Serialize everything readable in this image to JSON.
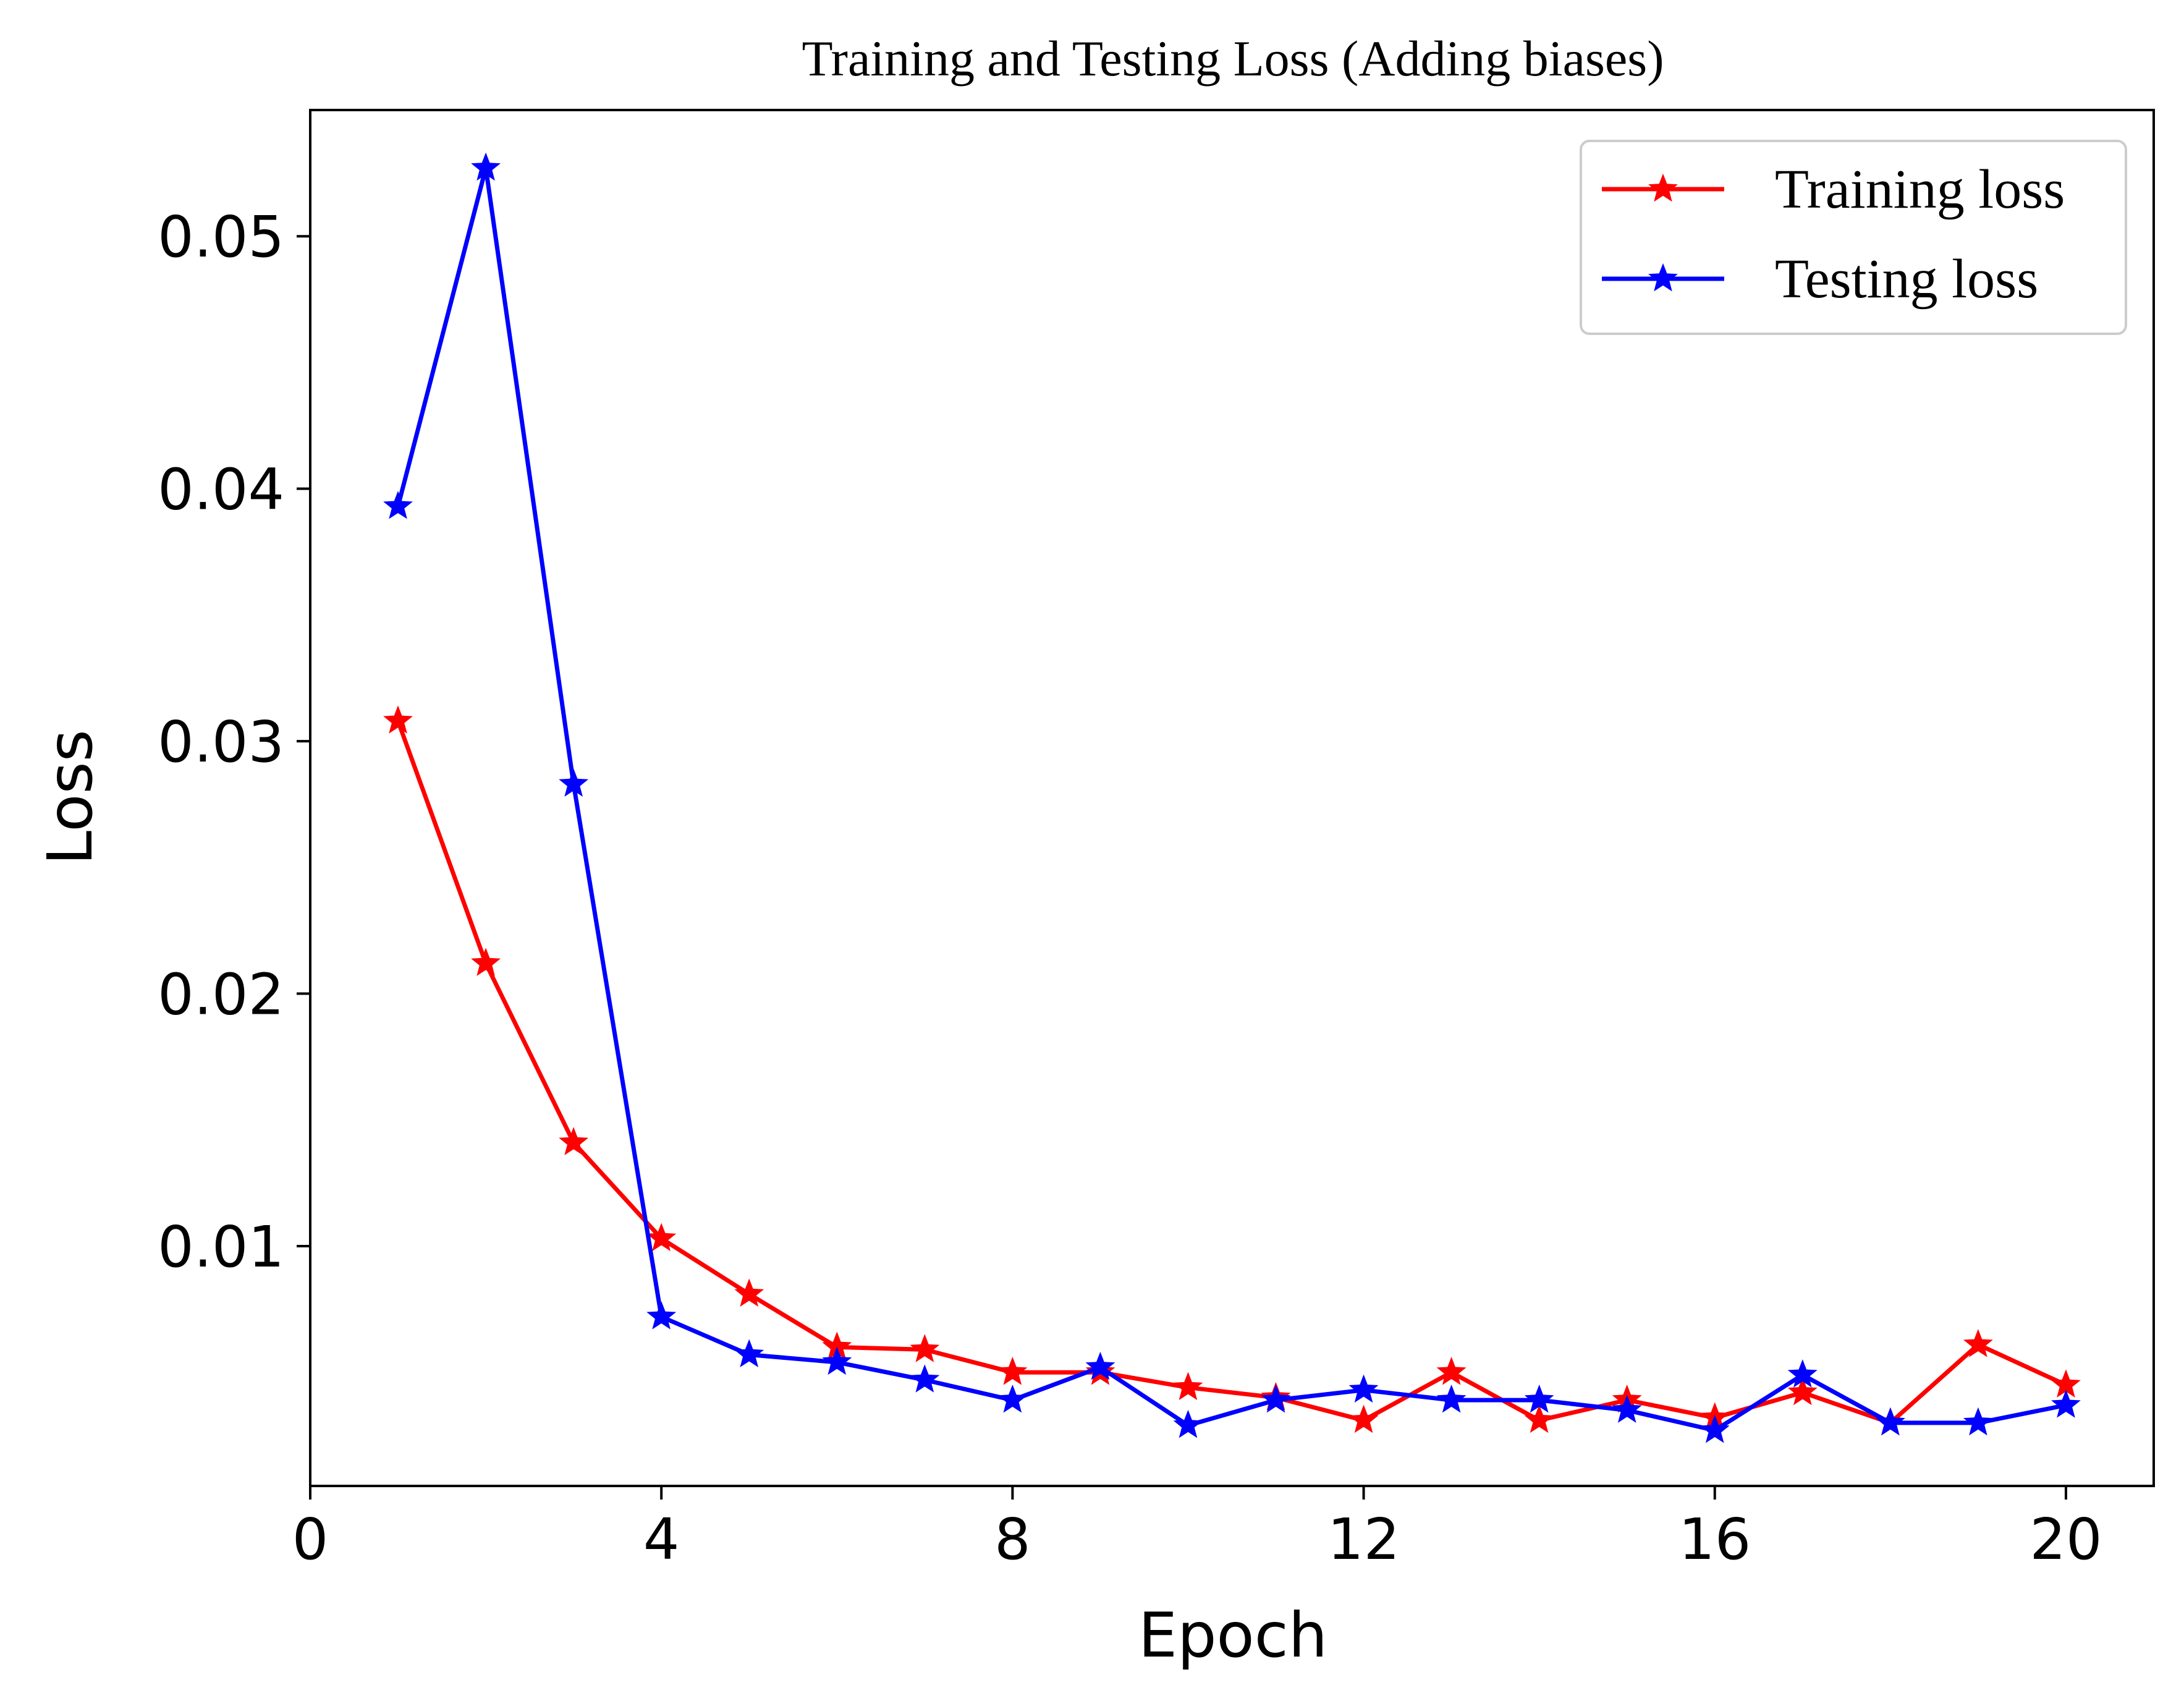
{
  "chart_data": {
    "type": "line",
    "title": "Training and Testing Loss (Adding biases)",
    "xlabel": "Epoch",
    "ylabel": "Loss",
    "xlim": [
      0,
      21
    ],
    "ylim": [
      0.0005,
      0.055
    ],
    "xticks": [
      0,
      4,
      8,
      12,
      16,
      20
    ],
    "xtick_labels": [
      "0",
      "4",
      "8",
      "12",
      "16",
      "20"
    ],
    "yticks": [
      0.01,
      0.02,
      0.03,
      0.04,
      0.05
    ],
    "ytick_labels": [
      "0.01",
      "0.02",
      "0.03",
      "0.04",
      "0.05"
    ],
    "grid": false,
    "legend_position": "top-right",
    "marker": "star",
    "x": [
      1,
      2,
      3,
      4,
      5,
      6,
      7,
      8,
      9,
      10,
      11,
      12,
      13,
      14,
      15,
      16,
      17,
      18,
      19,
      20
    ],
    "series": [
      {
        "name": "Training loss",
        "color": "#ff0000",
        "values": [
          0.0308,
          0.0212,
          0.0141,
          0.0103,
          0.0081,
          0.006,
          0.0059,
          0.005,
          0.005,
          0.0044,
          0.004,
          0.0031,
          0.005,
          0.0031,
          0.0039,
          0.0032,
          0.0042,
          0.003,
          0.0061,
          0.0045
        ]
      },
      {
        "name": "Testing loss",
        "color": "#0000ff",
        "values": [
          0.0393,
          0.0527,
          0.0283,
          0.0072,
          0.0057,
          0.0054,
          0.0047,
          0.0039,
          0.0052,
          0.0029,
          0.0039,
          0.0043,
          0.0039,
          0.0039,
          0.0035,
          0.0027,
          0.0049,
          0.003,
          0.003,
          0.0037
        ]
      }
    ]
  }
}
